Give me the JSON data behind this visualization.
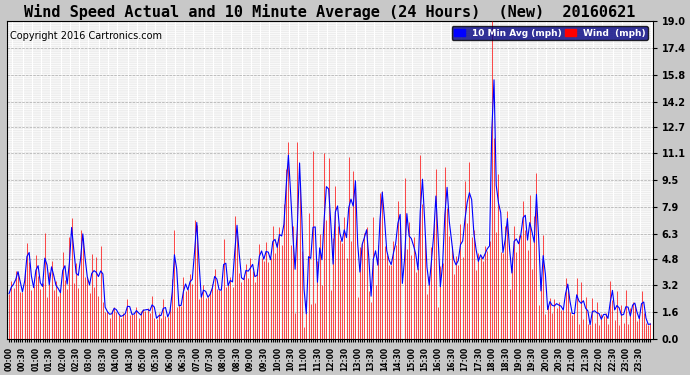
{
  "title": "Wind Speed Actual and 10 Minute Average (24 Hours)  (New)  20160621",
  "copyright": "Copyright 2016 Cartronics.com",
  "ylabel_right_ticks": [
    0.0,
    1.6,
    3.2,
    4.8,
    6.3,
    7.9,
    9.5,
    11.1,
    12.7,
    14.2,
    15.8,
    17.4,
    19.0
  ],
  "ylim": [
    0.0,
    19.0
  ],
  "fig_bg_color": "#c8c8c8",
  "plot_bg": "#ffffff",
  "wind_color": "#ff0000",
  "avg_color": "#0000ff",
  "grid_color": "#aaaaaa",
  "title_fontsize": 11,
  "copyright_fontsize": 7,
  "legend_blue_label": "10 Min Avg (mph)",
  "legend_red_label": "Wind  (mph)",
  "n_points": 288,
  "seed": 1234
}
